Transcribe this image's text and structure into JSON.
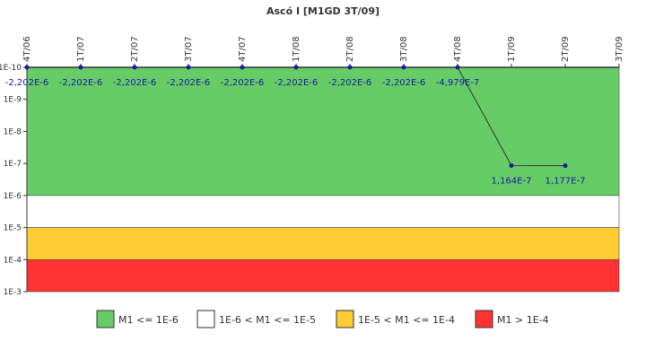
{
  "chart_data": {
    "type": "line",
    "title": "Ascó I [M1GD 3T/09]",
    "x": [
      "4T/06",
      "1T/07",
      "2T/07",
      "3T/07",
      "4T/07",
      "1T/08",
      "2T/08",
      "3T/08",
      "4T/08",
      "1T/09",
      "2T/09",
      "3T/09"
    ],
    "series": [
      {
        "values": [
          -2.202e-06,
          -2.202e-06,
          -2.202e-06,
          -2.202e-06,
          -2.202e-06,
          -2.202e-06,
          -2.202e-06,
          -2.202e-06,
          -4.979e-07,
          1.164e-07,
          1.177e-07,
          null
        ],
        "labels": [
          "-2,202E-6",
          "-2,202E-6",
          "-2,202E-6",
          "-2,202E-6",
          "-2,202E-6",
          "-2,202E-6",
          "-2,202E-6",
          "-2,202E-6",
          "-4,979E-7",
          "1,164E-7",
          "1,177E-7",
          null
        ],
        "color": "#1a1aa6"
      }
    ],
    "y_scale": "log",
    "y_axis_inverted": true,
    "y_ticks": [
      "1E-10",
      "1E-9",
      "1E-8",
      "1E-7",
      "1E-6",
      "1E-5",
      "1E-4",
      "1E-3"
    ],
    "ylim": [
      1e-10,
      0.001
    ],
    "note_values": "Values at or below zero are drawn at the top edge (1E-10).",
    "bands": [
      {
        "label": "M1 <= 1E-6",
        "from": 1e-10,
        "to": 1e-06,
        "color": "#66cc66"
      },
      {
        "label": "1E-6 < M1 <= 1E-5",
        "from": 1e-06,
        "to": 1e-05,
        "color": "#ffffff"
      },
      {
        "label": "1E-5 < M1 <= 1E-4",
        "from": 1e-05,
        "to": 0.0001,
        "color": "#ffcc33"
      },
      {
        "label": "M1 > 1E-4",
        "from": 0.0001,
        "to": 0.001,
        "color": "#ff3333"
      }
    ],
    "legend_position": "bottom",
    "grid": false
  }
}
